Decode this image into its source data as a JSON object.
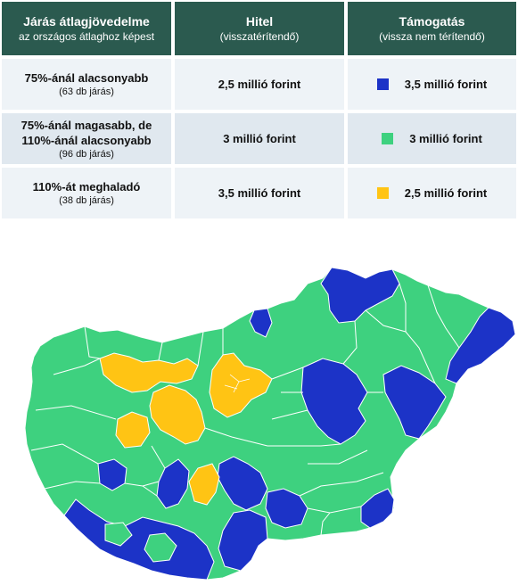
{
  "colors": {
    "header_bg": "#2b5a4f",
    "blue": "#1c33c7",
    "green": "#3ed17f",
    "yellow": "#ffc414"
  },
  "table": {
    "headers": [
      {
        "title": "Járás átlagjövedelme",
        "subtitle": "az országos átlaghoz képest"
      },
      {
        "title": "Hitel",
        "subtitle": "(visszatérítendő)"
      },
      {
        "title": "Támogatás",
        "subtitle": "(vissza nem térítendő)"
      }
    ],
    "rows": [
      {
        "category": "75%-ánál alacsonyabb",
        "count": "(63 db járás)",
        "loan": "2,5 millió forint",
        "grant": "3,5 millió forint",
        "color": "blue"
      },
      {
        "category": "75%-ánál magasabb, de 110%-ánál alacsonyabb",
        "count": "(96 db járás)",
        "loan": "3 millió forint",
        "grant": "3 millió forint",
        "color": "green"
      },
      {
        "category": "110%-át meghaladó",
        "count": "(38 db járás)",
        "loan": "3,5 millió forint",
        "grant": "2,5 millió forint",
        "color": "yellow"
      }
    ]
  }
}
